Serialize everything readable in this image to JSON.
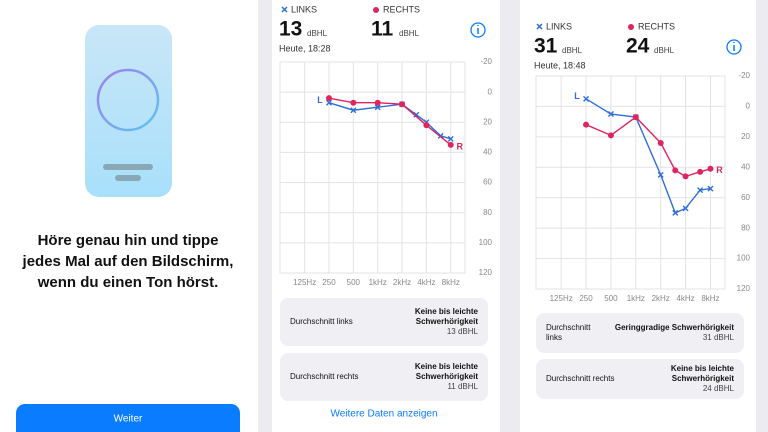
{
  "intro": {
    "instruction_lines": [
      "Höre genau hin und tippe",
      "jedes Mal auf den Bildschirm,",
      "wenn du einen Ton hörst."
    ],
    "button": "Weiter"
  },
  "result_1": {
    "left_label": "LINKS",
    "right_label": "RECHTS",
    "left_value": 13,
    "right_value": 11,
    "unit": "dBHL",
    "date": "Heute, 18:28",
    "chart": {
      "type": "line",
      "xscale": "log",
      "xlim": [
        62,
        12000
      ],
      "ylim": [
        -20,
        120
      ],
      "grid": true,
      "xticks": [
        {
          "value": 125,
          "label": "125Hz"
        },
        250,
        500,
        {
          "value": 1000,
          "label": "1kHz"
        },
        {
          "value": 2000,
          "label": "2kHz"
        },
        {
          "value": 4000,
          "label": "4kHz"
        },
        {
          "value": 8000,
          "label": "8kHz"
        }
      ],
      "yticks": [
        -20,
        0,
        20,
        40,
        60,
        80,
        100,
        120
      ],
      "series": [
        {
          "name": "L",
          "color": "#2f6fd6",
          "marker": "cross",
          "x": [
            250,
            500,
            1000,
            2000,
            3000,
            4000,
            6000,
            8000
          ],
          "values": [
            7,
            12,
            10,
            8,
            15,
            20,
            29,
            31
          ]
        },
        {
          "name": "R",
          "color": "#e0245e",
          "marker": "dot",
          "x": [
            250,
            500,
            1000,
            2000,
            4000,
            8000
          ],
          "values": [
            4,
            7,
            7,
            8,
            22,
            35
          ]
        }
      ]
    },
    "cards": [
      {
        "label_lines": [
          "Durchschnitt links"
        ],
        "result_lines": [
          "Keine bis leichte",
          "Schwerhörigkeit"
        ],
        "value": "13 dBHL"
      },
      {
        "label_lines": [
          "Durchschnitt rechts"
        ],
        "result_lines": [
          "Keine bis leichte",
          "Schwerhörigkeit"
        ],
        "value": "11 dBHL"
      }
    ],
    "more_link": "Weitere Daten anzeigen"
  },
  "result_2": {
    "left_label": "LINKS",
    "right_label": "RECHTS",
    "left_value": 31,
    "right_value": 24,
    "unit": "dBHL",
    "date": "Heute, 18:48",
    "chart": {
      "type": "line",
      "xscale": "log",
      "xlim": [
        62,
        12000
      ],
      "ylim": [
        -20,
        120
      ],
      "grid": true,
      "xticks": [
        {
          "value": 125,
          "label": "125Hz"
        },
        250,
        500,
        {
          "value": 1000,
          "label": "1kHz"
        },
        {
          "value": 2000,
          "label": "2kHz"
        },
        {
          "value": 4000,
          "label": "4kHz"
        },
        {
          "value": 8000,
          "label": "8kHz"
        }
      ],
      "yticks": [
        -20,
        0,
        20,
        40,
        60,
        80,
        100,
        120
      ],
      "series": [
        {
          "name": "L",
          "color": "#2f6fd6",
          "marker": "cross",
          "x": [
            250,
            500,
            1000,
            2000,
            3000,
            4000,
            6000,
            8000
          ],
          "values": [
            -5,
            5,
            7,
            45,
            70,
            67,
            55,
            54
          ]
        },
        {
          "name": "R",
          "color": "#e0245e",
          "marker": "dot",
          "x": [
            250,
            500,
            1000,
            2000,
            3000,
            4000,
            6000,
            8000
          ],
          "values": [
            12,
            19,
            7,
            24,
            42,
            46,
            43,
            41
          ]
        }
      ]
    },
    "cards": [
      {
        "label_lines": [
          "Durchschnitt",
          "links"
        ],
        "result_lines": [
          "Geringgradige Schwerhörigkeit"
        ],
        "value": "31 dBHL"
      },
      {
        "label_lines": [
          "Durchschnitt rechts"
        ],
        "result_lines": [
          "Keine bis leichte",
          "Schwerhörigkeit"
        ],
        "value": "24 dBHL"
      }
    ]
  }
}
